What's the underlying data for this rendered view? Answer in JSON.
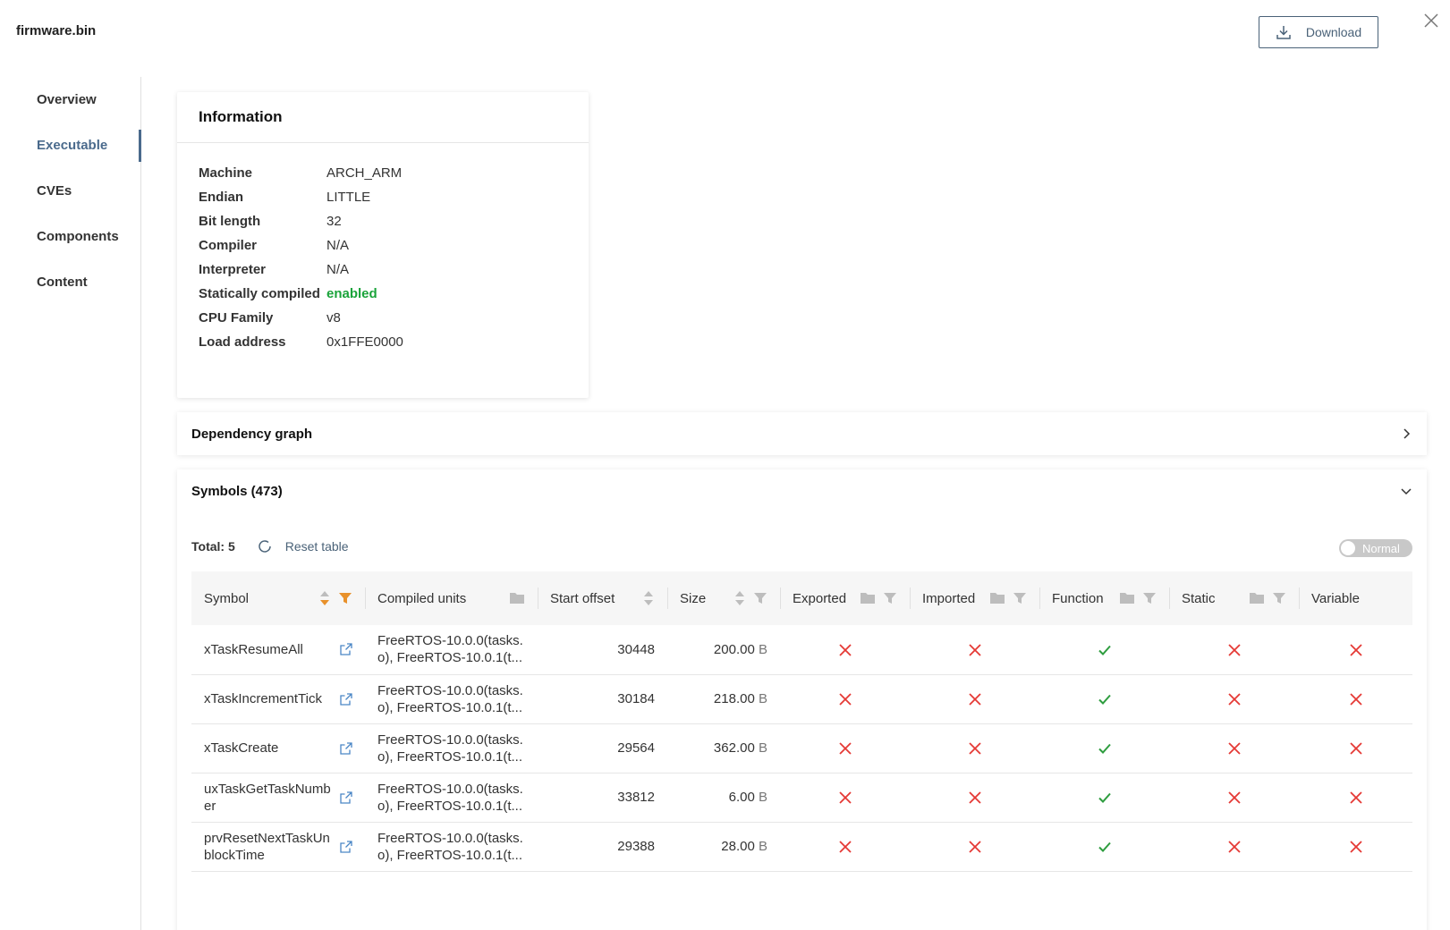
{
  "header": {
    "file_name": "firmware.bin",
    "download_label": "Download"
  },
  "sidebar": {
    "items": [
      {
        "label": "Overview",
        "active": false
      },
      {
        "label": "Executable",
        "active": true
      },
      {
        "label": "CVEs",
        "active": false
      },
      {
        "label": "Components",
        "active": false
      },
      {
        "label": "Content",
        "active": false
      }
    ]
  },
  "information": {
    "title": "Information",
    "rows": [
      {
        "key": "Machine",
        "value": "ARCH_ARM"
      },
      {
        "key": "Endian",
        "value": "LITTLE"
      },
      {
        "key": "Bit length",
        "value": "32"
      },
      {
        "key": "Compiler",
        "value": "N/A"
      },
      {
        "key": "Interpreter",
        "value": "N/A"
      },
      {
        "key": "Statically compiled",
        "value": "enabled"
      },
      {
        "key": "CPU Family",
        "value": "v8"
      },
      {
        "key": "Load address",
        "value": "0x1FFE0000"
      }
    ]
  },
  "dependency_graph": {
    "title": "Dependency graph"
  },
  "symbols": {
    "title": "Symbols (473)",
    "total_label": "Total: 5",
    "reset_label": "Reset table",
    "mode_label": "Normal",
    "columns": [
      "Symbol",
      "Compiled units",
      "Start offset",
      "Size",
      "Exported",
      "Imported",
      "Function",
      "Static",
      "Variable"
    ],
    "rows": [
      {
        "symbol": "xTaskResumeAll",
        "units_line1": "FreeRTOS-10.0.0(tasks.",
        "units_line2": "o), FreeRTOS-10.0.1(t...",
        "offset": "30448",
        "size": "200.00",
        "unit": "B",
        "exported": false,
        "imported": false,
        "function": true,
        "static": false,
        "variable": false
      },
      {
        "symbol": "xTaskIncrementTick",
        "units_line1": "FreeRTOS-10.0.0(tasks.",
        "units_line2": "o), FreeRTOS-10.0.1(t...",
        "offset": "30184",
        "size": "218.00",
        "unit": "B",
        "exported": false,
        "imported": false,
        "function": true,
        "static": false,
        "variable": false
      },
      {
        "symbol": "xTaskCreate",
        "units_line1": "FreeRTOS-10.0.0(tasks.",
        "units_line2": "o), FreeRTOS-10.0.1(t...",
        "offset": "29564",
        "size": "362.00",
        "unit": "B",
        "exported": false,
        "imported": false,
        "function": true,
        "static": false,
        "variable": false
      },
      {
        "symbol": "uxTaskGetTaskNumber",
        "units_line1": "FreeRTOS-10.0.0(tasks.",
        "units_line2": "o), FreeRTOS-10.0.1(t...",
        "offset": "33812",
        "size": "6.00",
        "unit": "B",
        "exported": false,
        "imported": false,
        "function": true,
        "static": false,
        "variable": false
      },
      {
        "symbol": "prvResetNextTaskUnblockTime",
        "units_line1": "FreeRTOS-10.0.0(tasks.",
        "units_line2": "o), FreeRTOS-10.0.1(t...",
        "offset": "29388",
        "size": "28.00",
        "unit": "B",
        "exported": false,
        "imported": false,
        "function": true,
        "static": false,
        "variable": false
      }
    ]
  },
  "colors": {
    "accent": "#4a6a8c",
    "enabled_green": "#1aa33a",
    "cross_red": "#e53935",
    "check_green": "#2e9d3f",
    "sort_orange": "#e8912b"
  }
}
